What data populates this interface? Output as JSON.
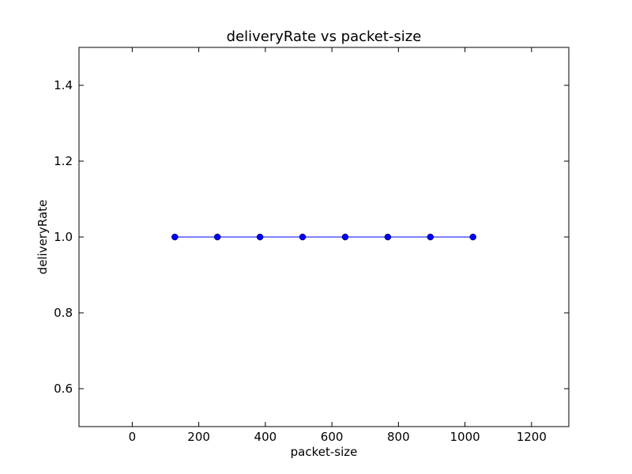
{
  "chart_data": {
    "type": "line",
    "title": "deliveryRate vs packet-size",
    "xlabel": "packet-size",
    "ylabel": "deliveryRate",
    "xlim": [
      -160,
      1312
    ],
    "ylim": [
      0.5,
      1.5
    ],
    "xticks": [
      0,
      200,
      400,
      600,
      800,
      1000,
      1200
    ],
    "yticks": [
      0.6,
      0.8,
      1.0,
      1.2,
      1.4
    ],
    "xtick_labels": [
      "0",
      "200",
      "400",
      "600",
      "800",
      "1000",
      "1200"
    ],
    "ytick_labels": [
      "0.6",
      "0.8",
      "1.0",
      "1.2",
      "1.4"
    ],
    "grid": false,
    "series": [
      {
        "x": [
          128,
          256,
          384,
          512,
          640,
          768,
          896,
          1024
        ],
        "y": [
          1.0,
          1.0,
          1.0,
          1.0,
          1.0,
          1.0,
          1.0,
          1.0
        ],
        "color": "#0000ff",
        "marker": "circle"
      }
    ]
  }
}
